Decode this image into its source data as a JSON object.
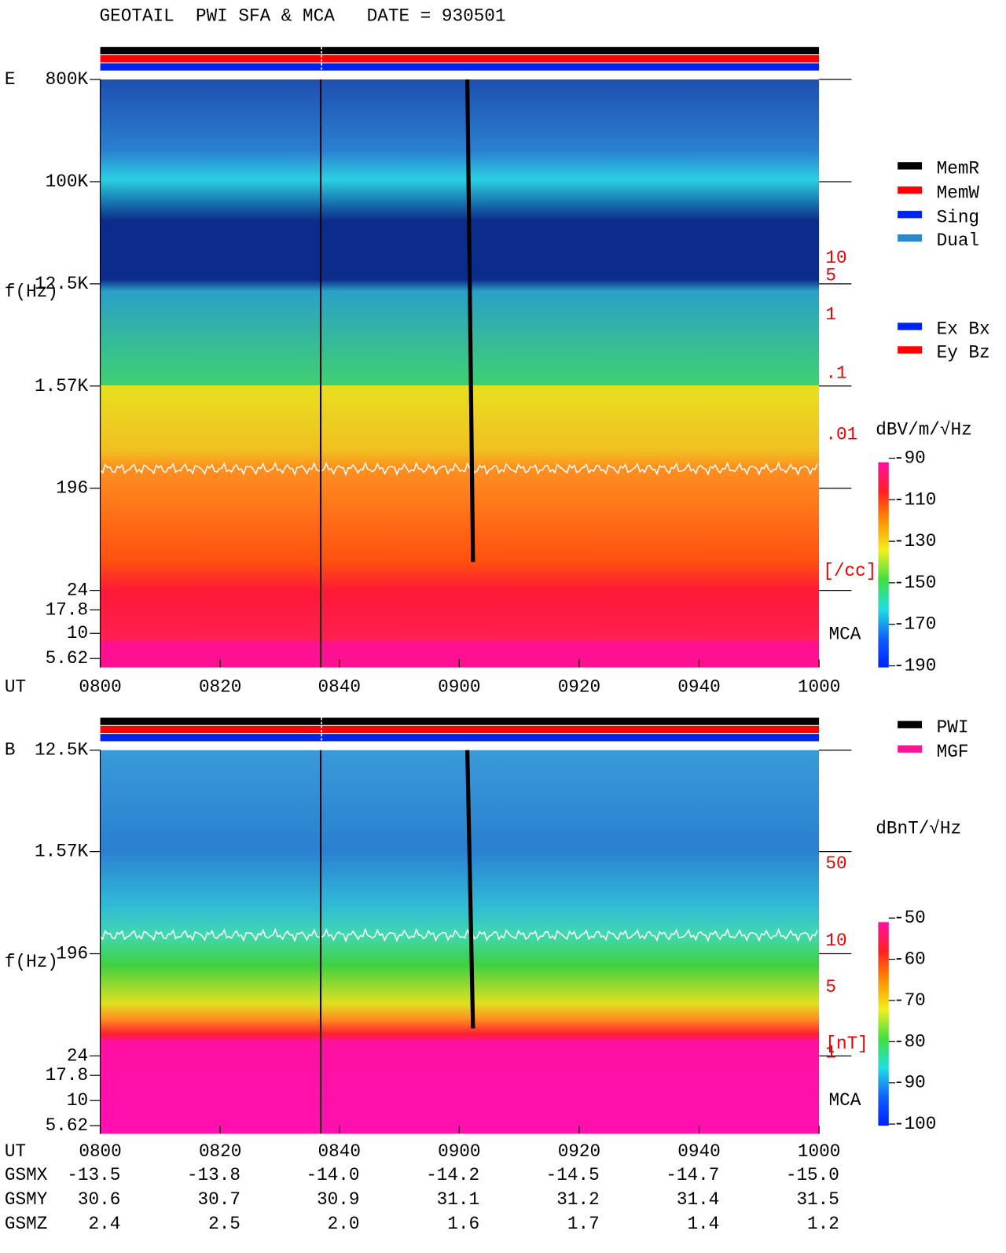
{
  "title": "GEOTAIL  PWI SFA & MCA   DATE = 930501",
  "panels": [
    {
      "label": "E",
      "y_axis_label": "f(Hz)",
      "y_ticks": [
        "800K",
        "100K",
        "12.5K",
        "1.57K",
        "196",
        "24",
        "17.8",
        "10",
        "5.62"
      ],
      "density_labels": [
        "10",
        "5",
        "1",
        ".1",
        ".01",
        "[/cc]"
      ],
      "mca_label": "MCA",
      "x_axis_label": "UT",
      "x_ticks": [
        "0800",
        "0820",
        "0840",
        "0900",
        "0920",
        "0940",
        "1000"
      ],
      "colorbar": {
        "title": "dBV/m/√Hz",
        "ticks": [
          "-90",
          "-110",
          "-130",
          "-150",
          "-170",
          "-190"
        ]
      }
    },
    {
      "label": "B",
      "y_axis_label": "f(Hz)",
      "y_ticks": [
        "12.5K",
        "1.57K",
        "196",
        "24",
        "17.8",
        "10",
        "5.62"
      ],
      "density_labels": [
        "50",
        "10",
        "5",
        "1",
        "[nT]"
      ],
      "mca_label": "MCA",
      "x_axis_label": "UT",
      "x_ticks": [
        "0800",
        "0820",
        "0840",
        "0900",
        "0920",
        "0940",
        "1000"
      ],
      "colorbar": {
        "title": "dBnT/√Hz",
        "ticks": [
          "-50",
          "-60",
          "-70",
          "-80",
          "-90",
          "-100"
        ]
      }
    }
  ],
  "legend": {
    "memory": [
      {
        "label": "MemR",
        "color": "#000000"
      },
      {
        "label": "MemW",
        "color": "#ff0000"
      },
      {
        "label": "Sing",
        "color": "#0022ee"
      },
      {
        "label": "Dual",
        "color": "#2a8ac8"
      }
    ],
    "antenna": [
      {
        "label": "Ex Bx",
        "color": "#0022ee"
      },
      {
        "label": "Ey Bz",
        "color": "#ff0000"
      }
    ],
    "instrument": [
      {
        "label": "PWI",
        "color": "#000000"
      },
      {
        "label": "MGF",
        "color": "#ff1493"
      }
    ]
  },
  "orbit": {
    "rows": [
      {
        "label": "GSMX",
        "values": [
          "-13.5",
          "-13.8",
          "-14.0",
          "-14.2",
          "-14.5",
          "-14.7",
          "-15.0"
        ]
      },
      {
        "label": "GSMY",
        "values": [
          "30.6",
          "30.7",
          "30.9",
          "31.1",
          "31.2",
          "31.4",
          "31.5"
        ]
      },
      {
        "label": "GSMZ",
        "values": [
          "2.4",
          "2.5",
          "2.0",
          "1.6",
          "1.7",
          "1.4",
          "1.2"
        ]
      }
    ]
  }
}
